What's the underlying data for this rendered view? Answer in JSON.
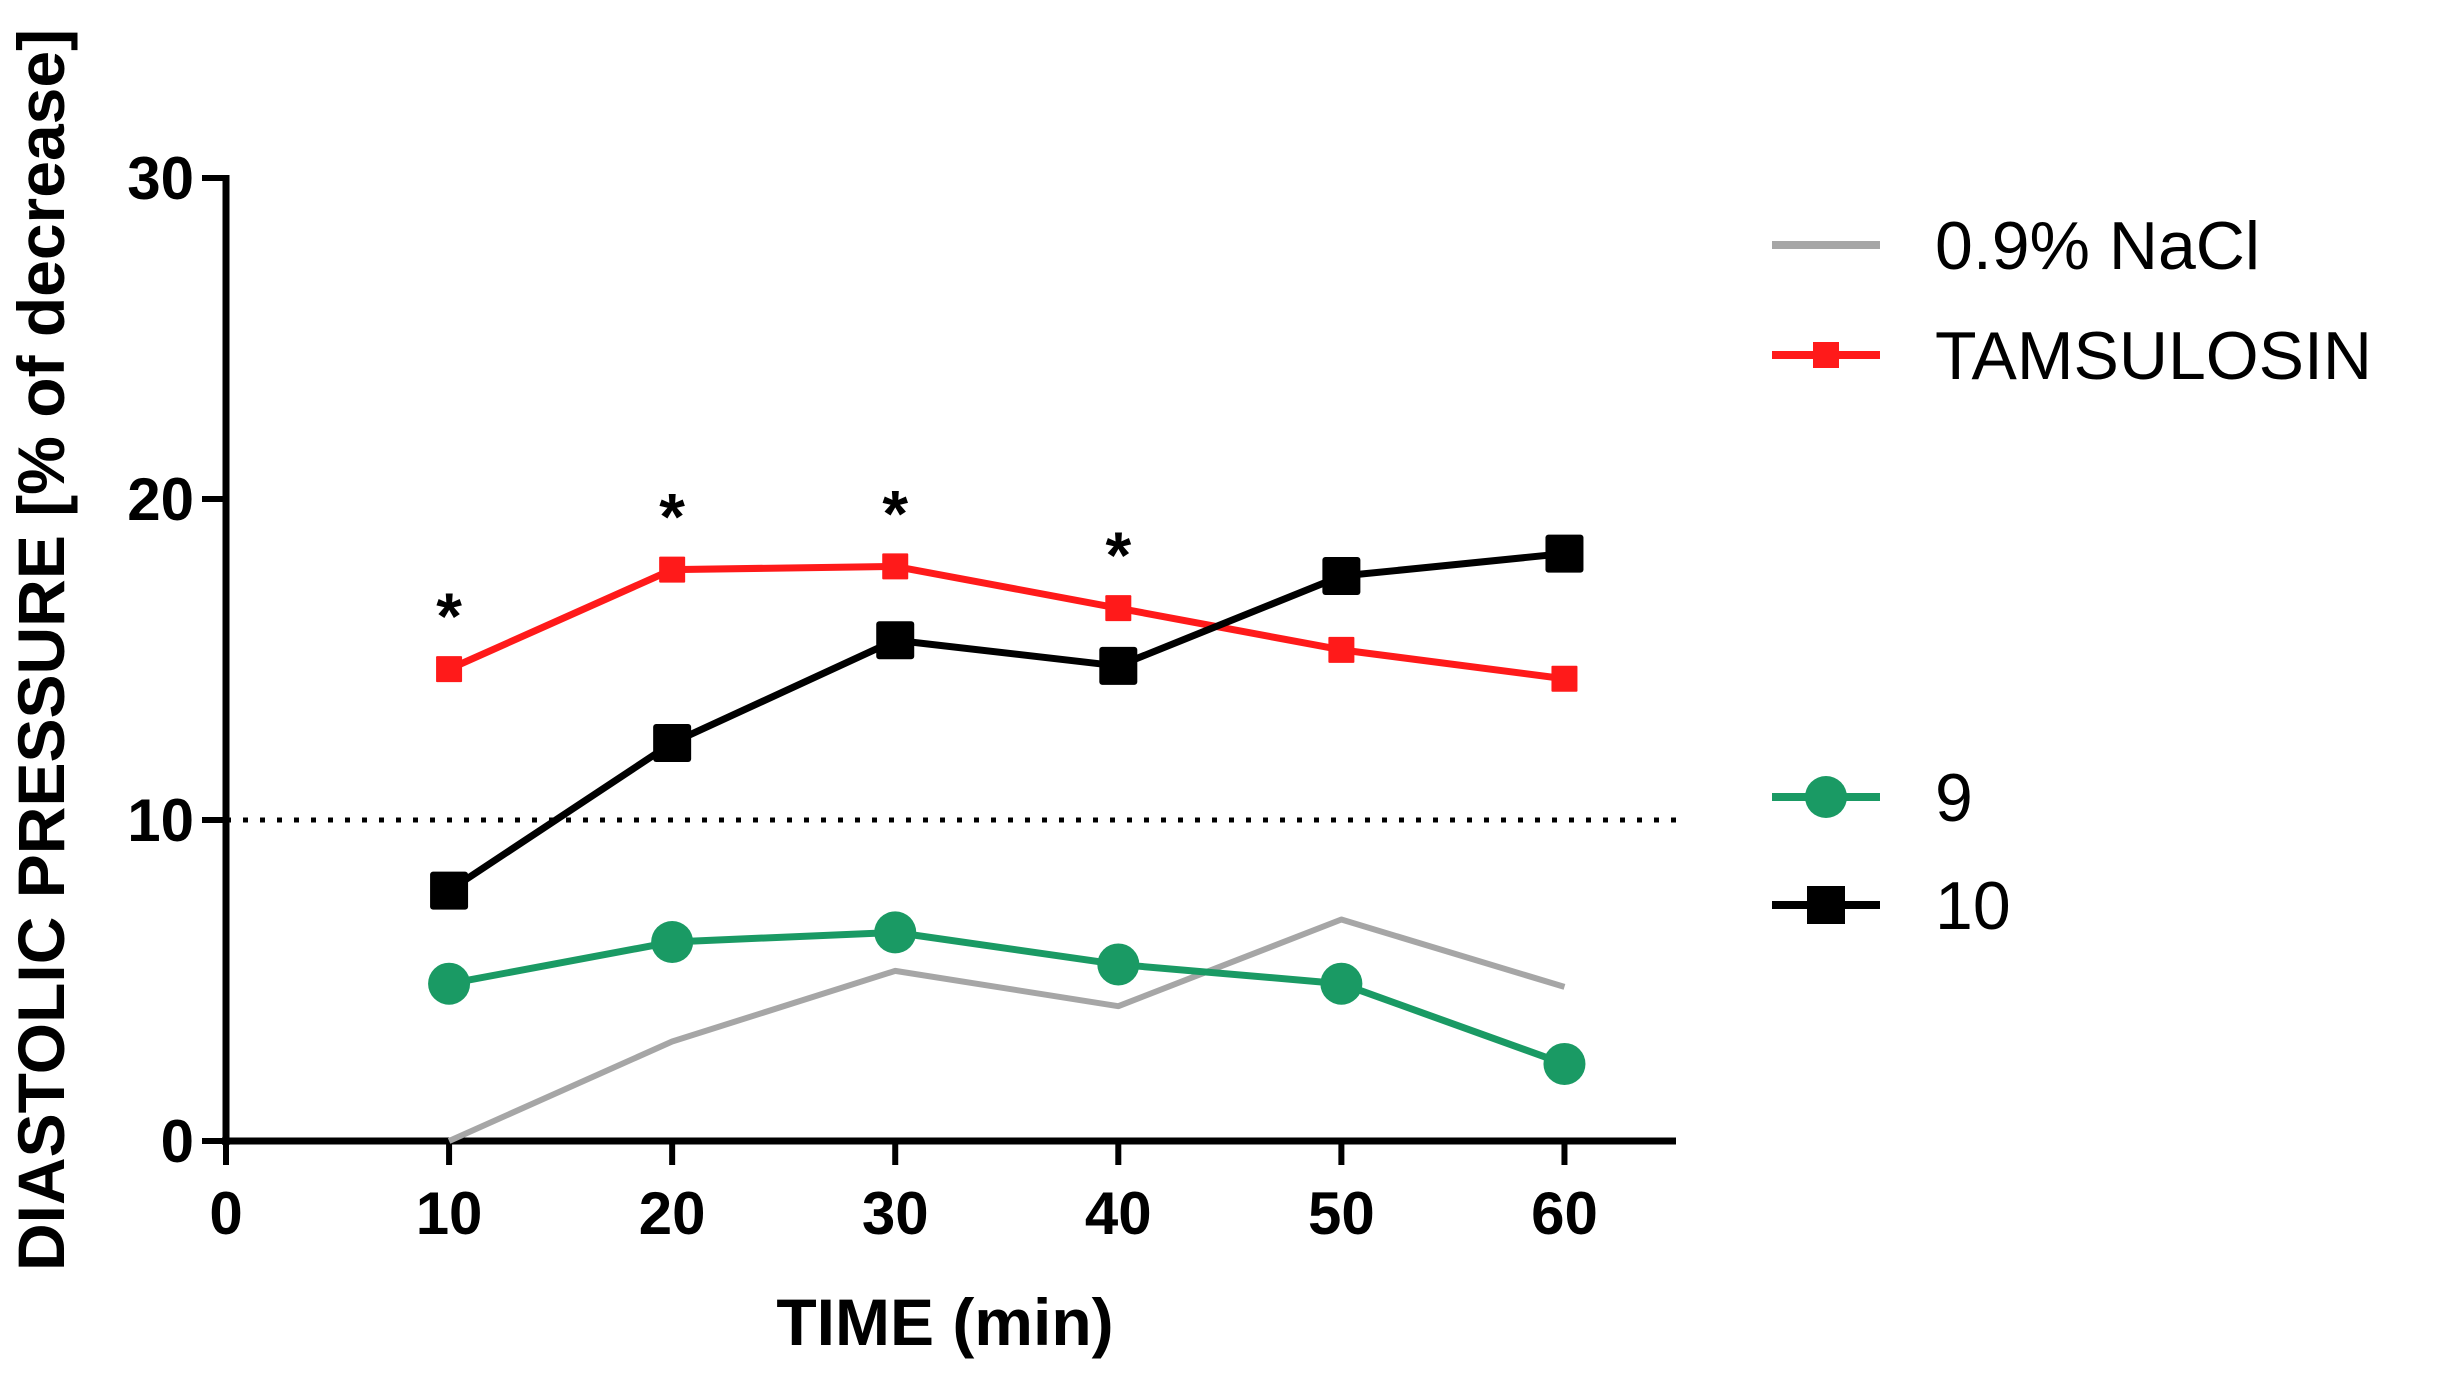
{
  "chart_data": {
    "type": "line",
    "xlabel": "TIME (min)",
    "ylabel": "DIASTOLIC PRESSURE [%  of decrease]",
    "xlim": [
      0,
      65
    ],
    "ylim": [
      0,
      30
    ],
    "x_ticks": [
      0,
      10,
      20,
      30,
      40,
      50,
      60
    ],
    "y_ticks": [
      0,
      10,
      20,
      30
    ],
    "x": [
      10,
      20,
      30,
      40,
      50,
      60
    ],
    "reference_line": {
      "y": 10,
      "style": "dotted"
    },
    "legend_position": "right",
    "series": [
      {
        "name": "0.9% NaCl",
        "color": "#a6a6a6",
        "marker": "none",
        "values": [
          0,
          3.1,
          5.3,
          4.2,
          6.9,
          4.8
        ]
      },
      {
        "name": "TAMSULOSIN",
        "color": "#ff1a1a",
        "marker": "square",
        "values": [
          14.7,
          17.8,
          17.9,
          16.6,
          15.3,
          14.4
        ]
      },
      {
        "name": "9",
        "color": "#1a9a64",
        "marker": "circle",
        "values": [
          4.9,
          6.2,
          6.5,
          5.5,
          4.9,
          2.4
        ]
      },
      {
        "name": "10",
        "color": "#000000",
        "marker": "square",
        "values": [
          7.8,
          12.4,
          15.6,
          14.8,
          17.6,
          18.3
        ]
      }
    ],
    "annotations": [
      {
        "text": "*",
        "x": 10,
        "y": 14.7
      },
      {
        "text": "*",
        "x": 20,
        "y": 17.8
      },
      {
        "text": "*",
        "x": 30,
        "y": 17.9
      },
      {
        "text": "*",
        "x": 40,
        "y": 16.6
      }
    ]
  }
}
